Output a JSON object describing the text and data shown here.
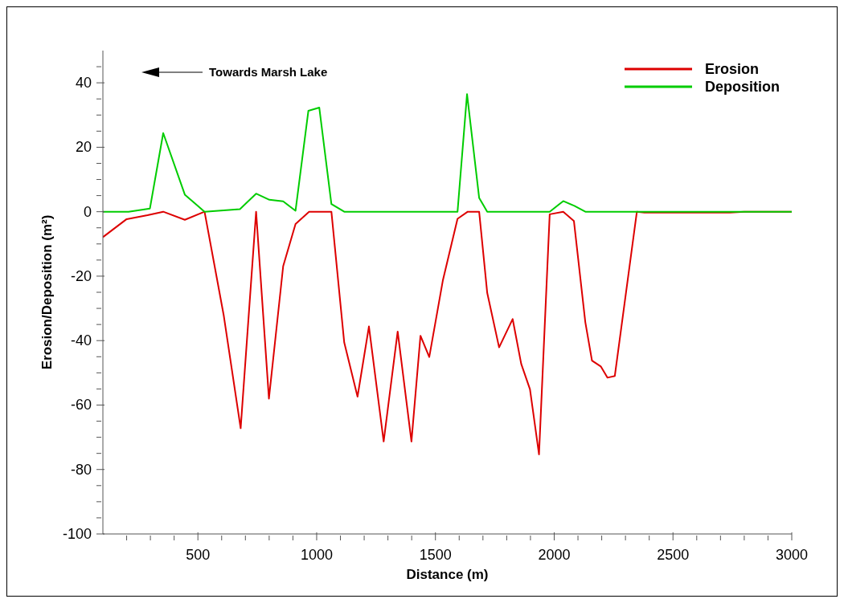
{
  "chart_data": {
    "type": "line",
    "xlabel": "Distance (m)",
    "ylabel": "Erosion/Deposition (m²)",
    "annotations": [
      "Towards Marsh Lake"
    ],
    "xlim": [
      100,
      3000
    ],
    "ylim": [
      -100,
      50
    ],
    "xticks": [
      {
        "value": 200,
        "label": null
      },
      {
        "value": 300,
        "label": null
      },
      {
        "value": 400,
        "label": null
      },
      500,
      {
        "value": 600,
        "label": null
      },
      {
        "value": 700,
        "label": null
      },
      {
        "value": 800,
        "label": null
      },
      {
        "value": 900,
        "label": null
      },
      1000,
      {
        "value": 1100,
        "label": null
      },
      {
        "value": 1200,
        "label": null
      },
      {
        "value": 1300,
        "label": null
      },
      {
        "value": 1400,
        "label": null
      },
      1500,
      {
        "value": 1600,
        "label": null
      },
      {
        "value": 1700,
        "label": null
      },
      {
        "value": 1800,
        "label": null
      },
      {
        "value": 1900,
        "label": null
      },
      2000,
      {
        "value": 2100,
        "label": null
      },
      {
        "value": 2200,
        "label": null
      },
      {
        "value": 2300,
        "label": null
      },
      {
        "value": 2400,
        "label": null
      },
      2500,
      {
        "value": 2600,
        "label": null
      },
      {
        "value": 2700,
        "label": null
      },
      {
        "value": 2800,
        "label": null
      },
      {
        "value": 2900,
        "label": null
      },
      3000
    ],
    "yticks": [
      -100,
      {
        "value": -95,
        "label": null
      },
      {
        "value": -90,
        "label": null
      },
      {
        "value": -85,
        "label": null
      },
      -80,
      {
        "value": -75,
        "label": null
      },
      {
        "value": -70,
        "label": null
      },
      {
        "value": -65,
        "label": null
      },
      -60,
      {
        "value": -55,
        "label": null
      },
      {
        "value": -50,
        "label": null
      },
      {
        "value": -45,
        "label": null
      },
      -40,
      {
        "value": -35,
        "label": null
      },
      {
        "value": -30,
        "label": null
      },
      {
        "value": -25,
        "label": null
      },
      -20,
      {
        "value": -15,
        "label": null
      },
      {
        "value": -10,
        "label": null
      },
      {
        "value": -5,
        "label": null
      },
      0,
      {
        "value": 5,
        "label": null
      },
      {
        "value": 10,
        "label": null
      },
      {
        "value": 15,
        "label": null
      },
      20,
      {
        "value": 25,
        "label": null
      },
      {
        "value": 30,
        "label": null
      },
      {
        "value": 35,
        "label": null
      },
      40,
      {
        "value": 45,
        "label": null
      }
    ],
    "grid": false,
    "legend": "top right",
    "marker": "none",
    "line_style": "solid",
    "series": [
      {
        "name": "Erosion",
        "color": "#dd0000",
        "x": [
          100,
          200,
          288,
          354,
          445,
          528,
          609,
          680,
          745,
          799,
          859,
          911,
          968,
          1062,
          1116,
          1172,
          1220,
          1282,
          1341,
          1399,
          1437,
          1474,
          1531,
          1593,
          1636,
          1684,
          1718,
          1768,
          1825,
          1861,
          1898,
          1936,
          1981,
          2038,
          2083,
          2131,
          2159,
          2196,
          2224,
          2255,
          2348,
          2380,
          2740,
          2800,
          3000
        ],
        "values": [
          -7.9,
          -2.3,
          -1.1,
          0,
          -2.5,
          0,
          -32.3,
          -67.2,
          0,
          -58,
          -16.9,
          -3.8,
          0,
          0,
          -40.6,
          -57.4,
          -35.6,
          -71.3,
          -37.2,
          -71.3,
          -38.5,
          -45.1,
          -21.4,
          -2.2,
          0,
          0,
          -25.2,
          -42.1,
          -33.3,
          -47.2,
          -55.1,
          -75.3,
          -0.8,
          0,
          -2.9,
          -34.3,
          -46.2,
          -48,
          -51.5,
          -51,
          0,
          -0.3,
          -0.3,
          0,
          0
        ]
      },
      {
        "name": "Deposition",
        "color": "#00cc00",
        "x": [
          100,
          208,
          298,
          354,
          445,
          528,
          677,
          745,
          801,
          859,
          911,
          965,
          1011,
          1062,
          1116,
          1593,
          1633,
          1684,
          1718,
          1981,
          2038,
          2085,
          2131,
          3000
        ],
        "values": [
          0,
          0,
          1,
          24.4,
          5.3,
          0,
          0.8,
          5.6,
          3.7,
          3.2,
          0.3,
          31.3,
          32.3,
          2.4,
          0,
          0,
          36.5,
          4.3,
          0,
          0,
          3.3,
          1.8,
          0,
          0
        ]
      }
    ]
  }
}
